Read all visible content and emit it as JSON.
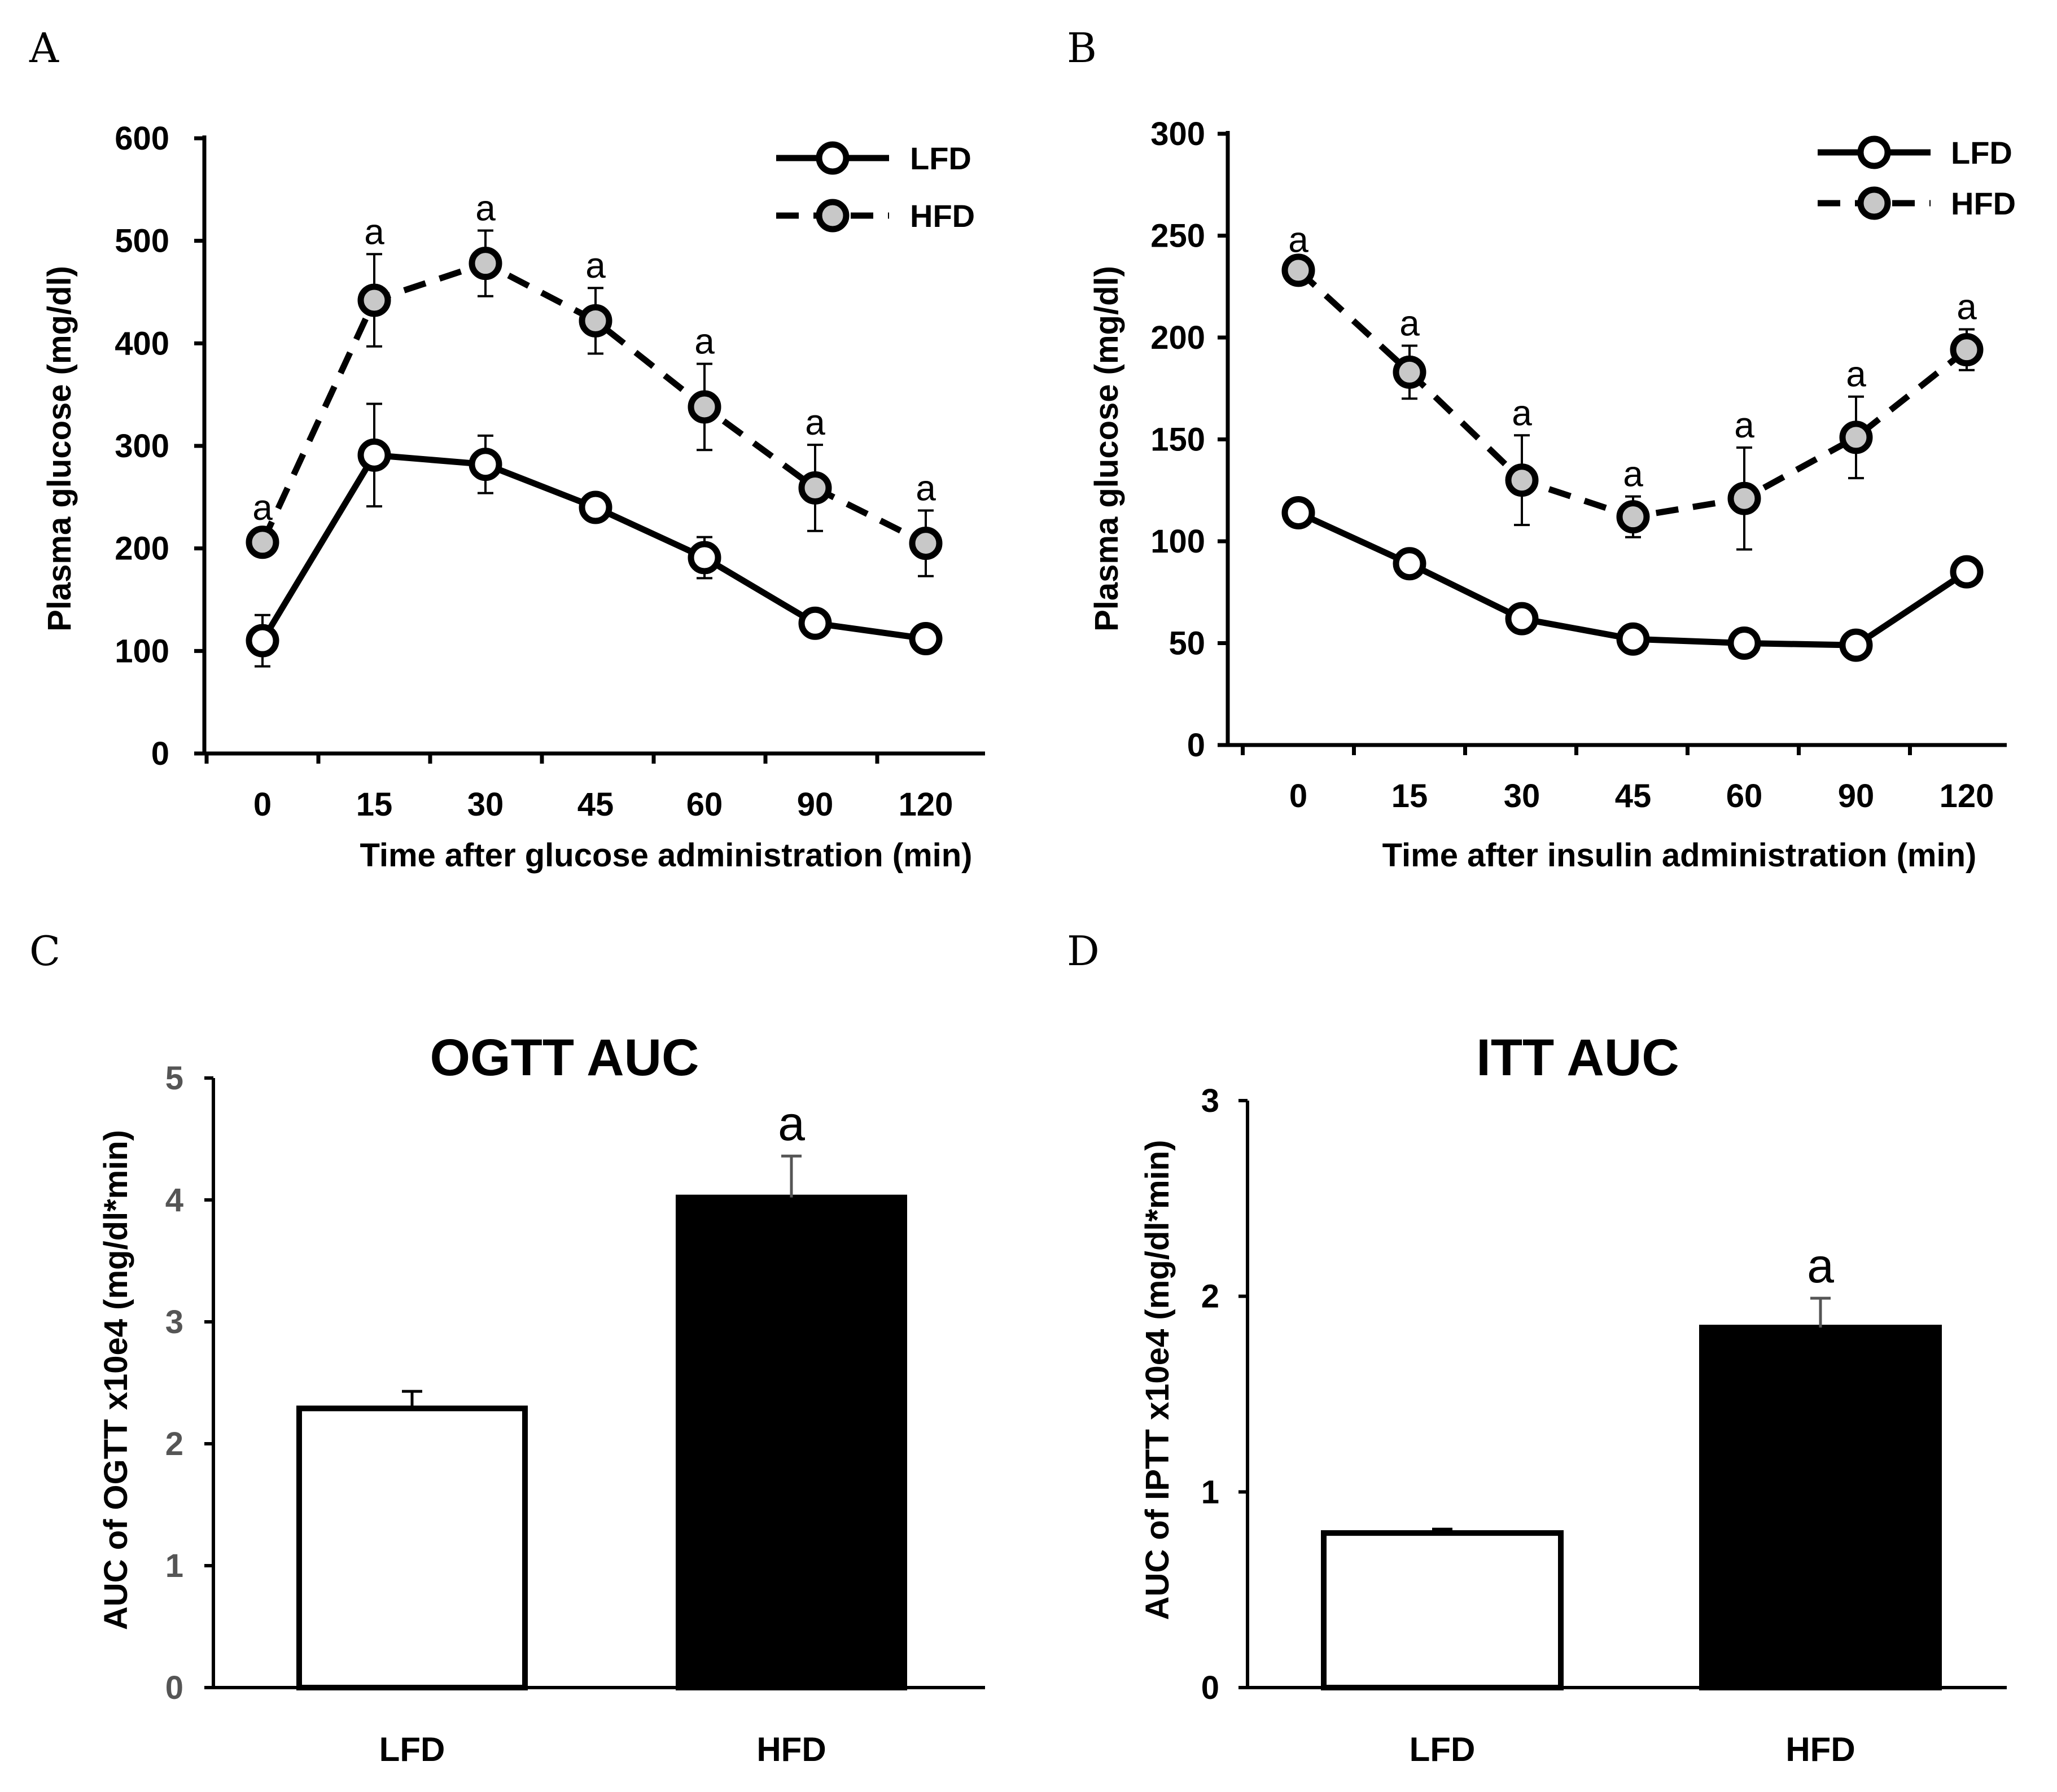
{
  "panels": {
    "A": "A",
    "B": "B",
    "C": "C",
    "D": "D"
  },
  "legend": {
    "lfd": "LFD",
    "hfd": "HFD"
  },
  "colors": {
    "lfd_marker_fill": "#ffffff",
    "hfd_marker_fill": "#c8c8c8",
    "lfd_bar": "#ffffff",
    "hfd_bar": "#000000",
    "stroke": "#000000"
  },
  "chart_data": [
    {
      "id": "A",
      "type": "line",
      "title": "",
      "xlabel": "Time after glucose administration (min)",
      "ylabel": "Plasma glucose (mg/dl)",
      "categories": [
        "0",
        "15",
        "30",
        "45",
        "60",
        "90",
        "120"
      ],
      "ylim": [
        0,
        600
      ],
      "yticks": [
        "0",
        "100",
        "200",
        "300",
        "400",
        "500",
        "600"
      ],
      "legend_position": "top-right",
      "series": [
        {
          "name": "LFD",
          "values": [
            110,
            291,
            282,
            240,
            191,
            127,
            112
          ],
          "errors": [
            25,
            50,
            28,
            8,
            20,
            8,
            8
          ],
          "significance": [
            "",
            "",
            "",
            "",
            "",
            "",
            ""
          ]
        },
        {
          "name": "HFD",
          "values": [
            206,
            442,
            478,
            422,
            338,
            259,
            205
          ],
          "errors": [
            12,
            45,
            32,
            32,
            42,
            42,
            32
          ],
          "significance": [
            "a",
            "a",
            "a",
            "a",
            "a",
            "a",
            "a"
          ]
        }
      ]
    },
    {
      "id": "B",
      "type": "line",
      "title": "",
      "xlabel": "Time after insulin administration (min)",
      "ylabel": "Plasma glucose (mg/dl)",
      "categories": [
        "0",
        "15",
        "30",
        "45",
        "60",
        "90",
        "120"
      ],
      "ylim": [
        0,
        300
      ],
      "yticks": [
        "0",
        "50",
        "100",
        "150",
        "200",
        "250",
        "300"
      ],
      "legend_position": "top-right",
      "series": [
        {
          "name": "LFD",
          "values": [
            114,
            89,
            62,
            52,
            50,
            49,
            85
          ],
          "errors": [
            3,
            3,
            3,
            3,
            3,
            3,
            3
          ],
          "significance": [
            "",
            "",
            "",
            "",
            "",
            "",
            ""
          ]
        },
        {
          "name": "HFD",
          "values": [
            233,
            183,
            130,
            112,
            121,
            151,
            194
          ],
          "errors": [
            4,
            13,
            22,
            10,
            25,
            20,
            10
          ],
          "significance": [
            "a",
            "a",
            "a",
            "a",
            "a",
            "a",
            "a"
          ]
        }
      ]
    },
    {
      "id": "C",
      "type": "bar",
      "title": "OGTT AUC",
      "xlabel": "",
      "ylabel": "AUC of OGTT x10e4 (mg/dl*min)",
      "categories": [
        "LFD",
        "HFD"
      ],
      "values": [
        2.29,
        4.02
      ],
      "errors": [
        0.14,
        0.34
      ],
      "significance": [
        "",
        "a"
      ],
      "ylim": [
        0,
        5
      ],
      "yticks": [
        "0",
        "1",
        "2",
        "3",
        "4",
        "5"
      ]
    },
    {
      "id": "D",
      "type": "bar",
      "title": "ITT AUC",
      "xlabel": "",
      "ylabel": "AUC of IPTT x10e4 (mg/dl*min)",
      "categories": [
        "LFD",
        "HFD"
      ],
      "values": [
        0.79,
        1.84
      ],
      "errors": [
        0.02,
        0.15
      ],
      "significance": [
        "",
        "a"
      ],
      "ylim": [
        0,
        3
      ],
      "yticks": [
        "0",
        "1",
        "2",
        "3"
      ]
    }
  ]
}
